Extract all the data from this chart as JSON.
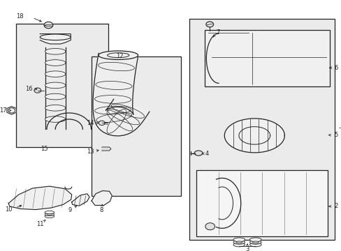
{
  "bg_color": "#ffffff",
  "line_color": "#222222",
  "fill_light": "#f0f0f0",
  "fill_medium": "#e0e0e0",
  "fill_dark": "#cccccc",
  "box_fill": "#ebebeb",
  "fig_width": 4.89,
  "fig_height": 3.6,
  "dpi": 100,
  "xlim": [
    0,
    1
  ],
  "ylim": [
    0,
    1
  ]
}
